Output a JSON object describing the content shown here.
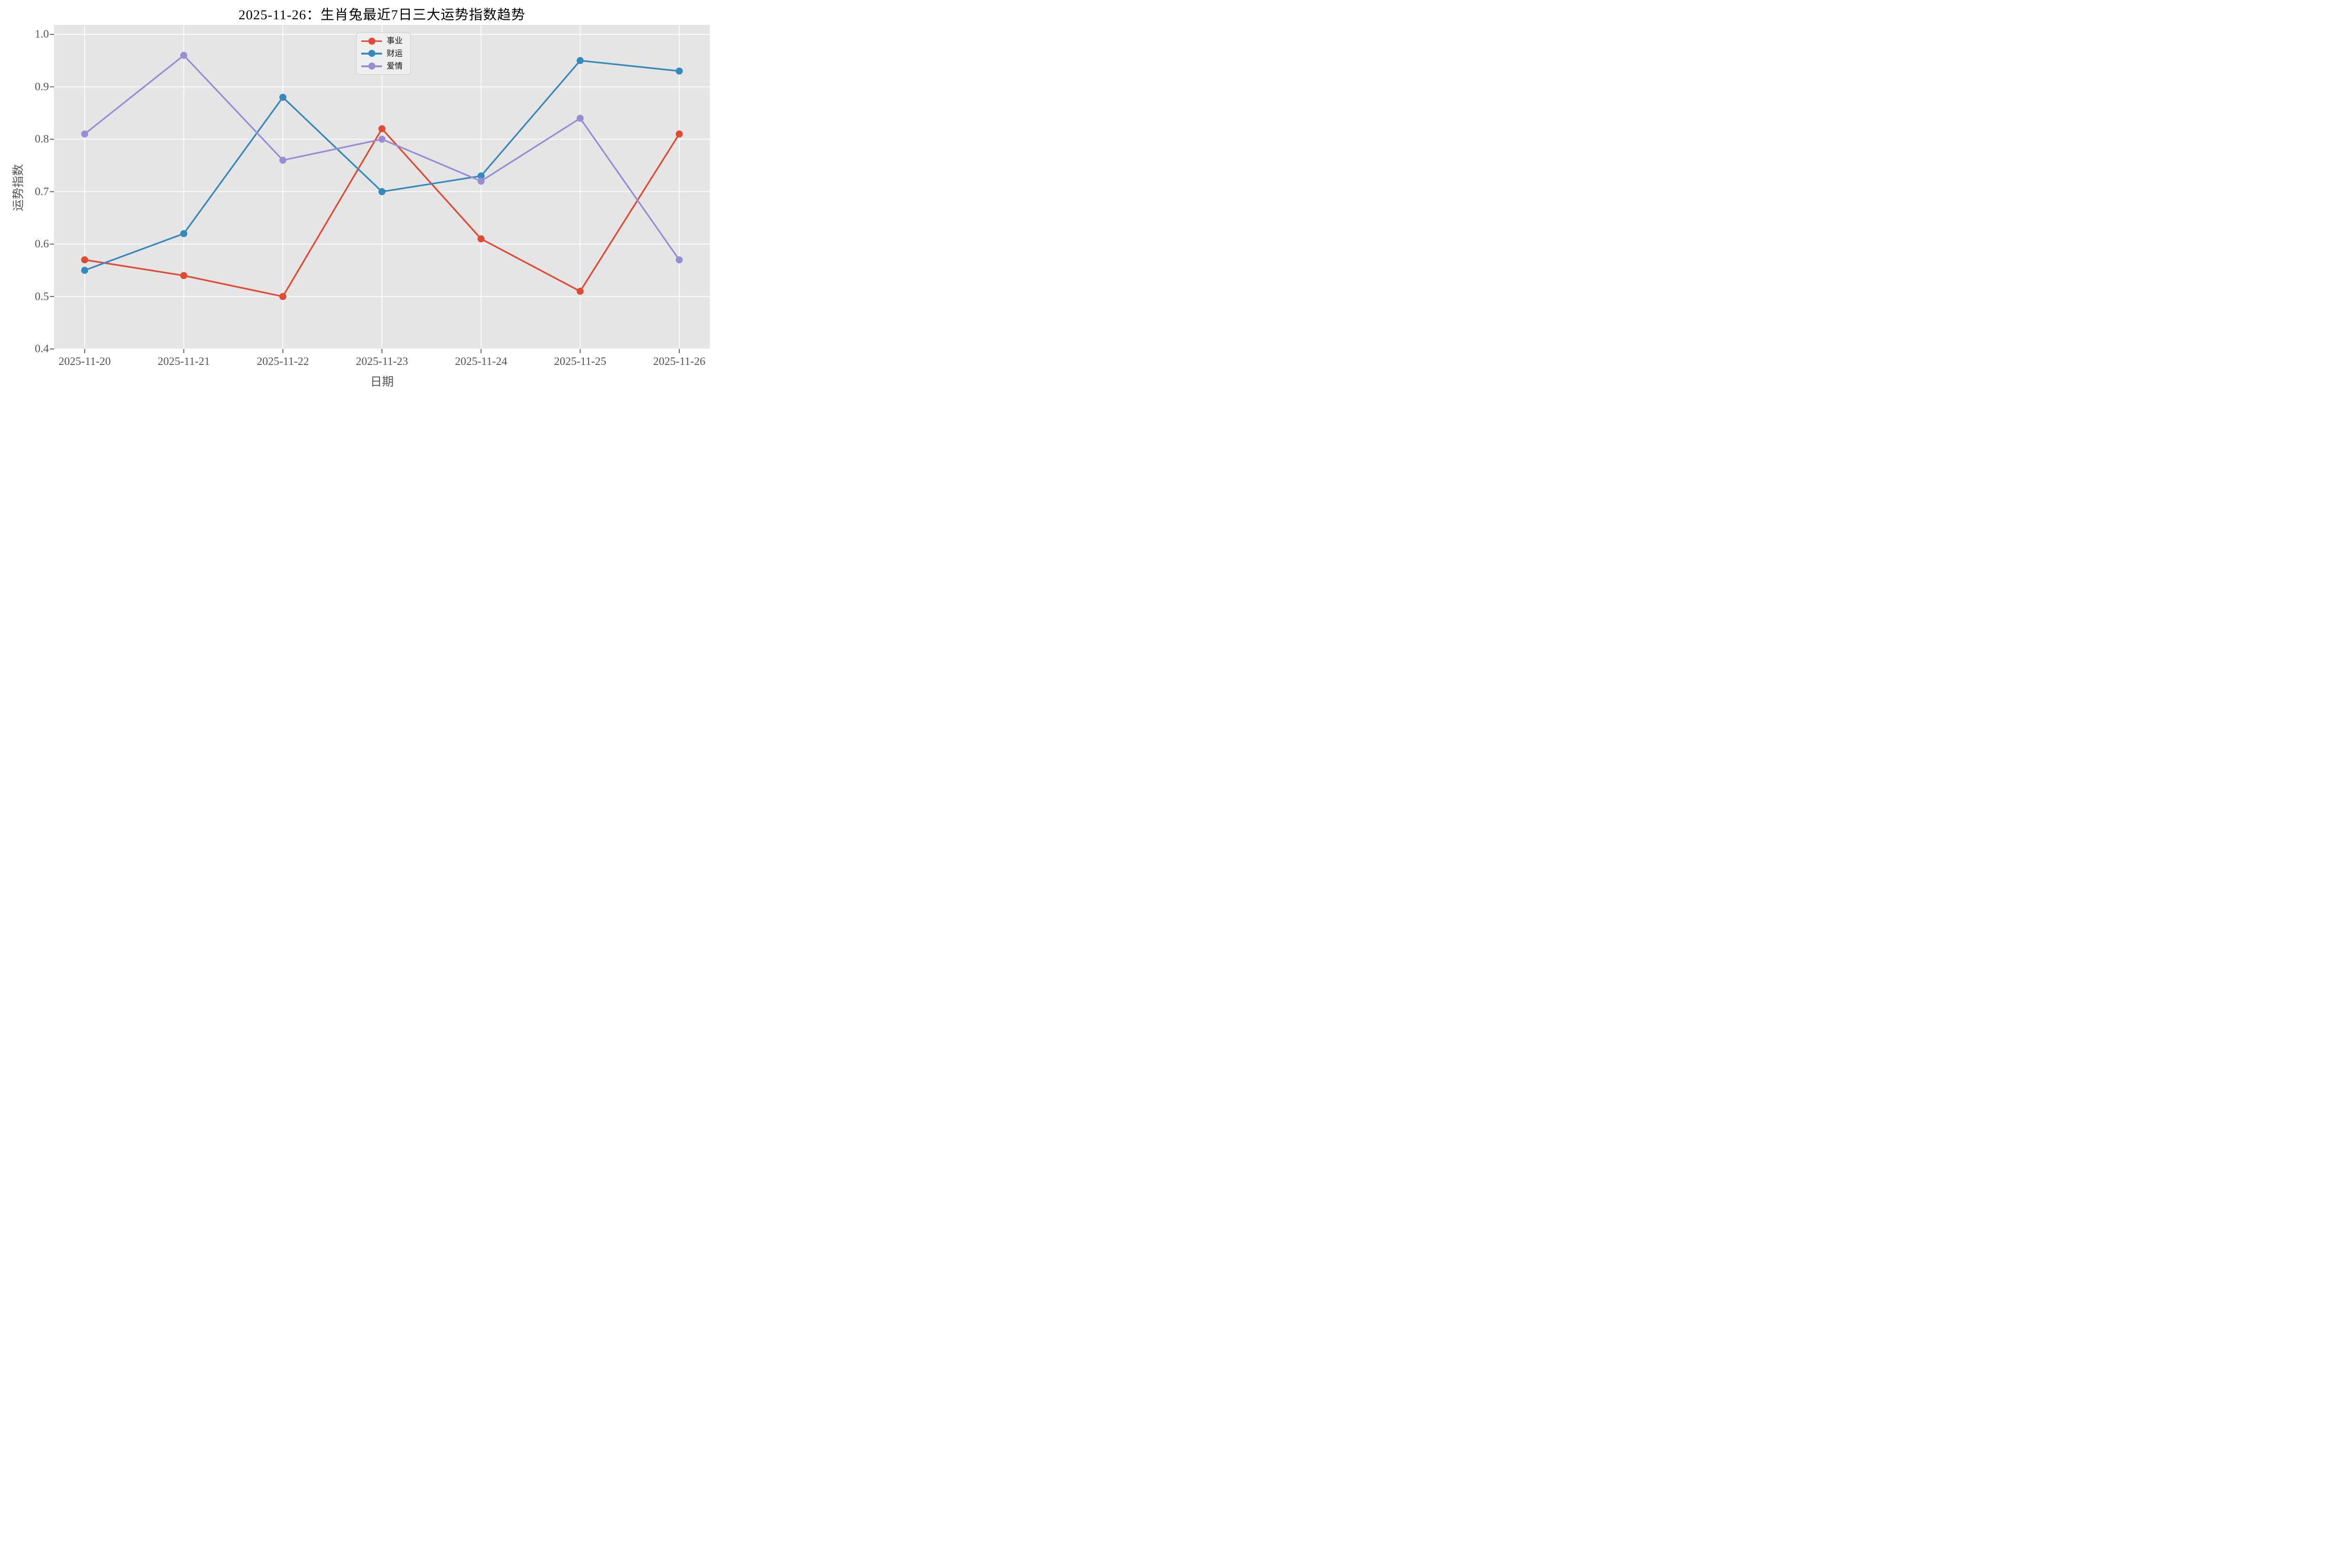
{
  "chart_data": {
    "type": "line",
    "title": "2025-11-26：生肖兔最近7日三大运势指数趋势",
    "xlabel": "日期",
    "ylabel": "运势指数",
    "categories": [
      "2025-11-20",
      "2025-11-21",
      "2025-11-22",
      "2025-11-23",
      "2025-11-24",
      "2025-11-25",
      "2025-11-26"
    ],
    "series": [
      {
        "name": "事业",
        "color": "#E24A33",
        "values": [
          0.57,
          0.54,
          0.5,
          0.82,
          0.61,
          0.51,
          0.81
        ]
      },
      {
        "name": "财运",
        "color": "#348ABD",
        "values": [
          0.55,
          0.62,
          0.88,
          0.7,
          0.73,
          0.95,
          0.93
        ]
      },
      {
        "name": "爱情",
        "color": "#988ED5",
        "values": [
          0.81,
          0.96,
          0.76,
          0.8,
          0.72,
          0.84,
          0.57
        ]
      }
    ],
    "yticks": [
      0.4,
      0.5,
      0.6,
      0.7,
      0.8,
      0.9,
      1.0
    ],
    "ylim": [
      0.4,
      1.018
    ],
    "grid": true,
    "legend_position": "upper center",
    "style": {
      "figure_bg": "#FFFFFF",
      "plot_bg": "#E5E5E5",
      "grid_color": "#FFFFFF",
      "tick_color": "#555555",
      "text_color": "#555555",
      "title_color": "#000000"
    }
  }
}
